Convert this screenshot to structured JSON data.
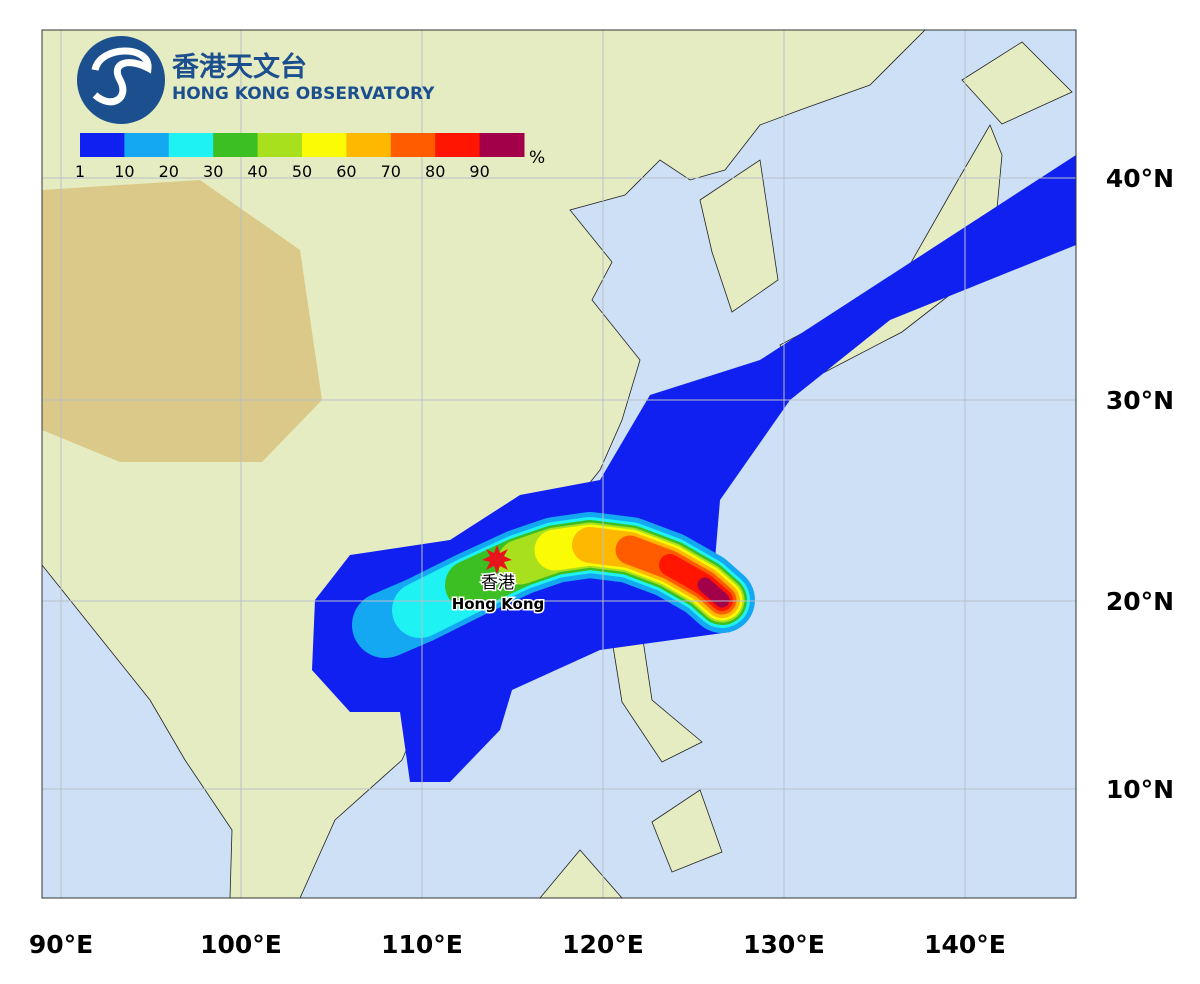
{
  "header": {
    "title_zh": "香港天文台",
    "title_en": "HONG KONG OBSERVATORY"
  },
  "legend": {
    "unit": "%",
    "labels": [
      1,
      10,
      20,
      30,
      40,
      50,
      60,
      70,
      80,
      90
    ],
    "colors": [
      "#1020f0",
      "#15a8f2",
      "#1ff2f2",
      "#3cbf22",
      "#a8e01e",
      "#fbfb05",
      "#ffb800",
      "#ff5c00",
      "#ff1500",
      "#a3004a"
    ]
  },
  "axes": {
    "x_labels": [
      "90°E",
      "100°E",
      "110°E",
      "120°E",
      "130°E",
      "140°E"
    ],
    "y_labels": [
      "40°N",
      "30°N",
      "20°N",
      "10°N"
    ]
  },
  "marker": {
    "label_zh": "香港",
    "label_en": "Hong Kong"
  }
}
